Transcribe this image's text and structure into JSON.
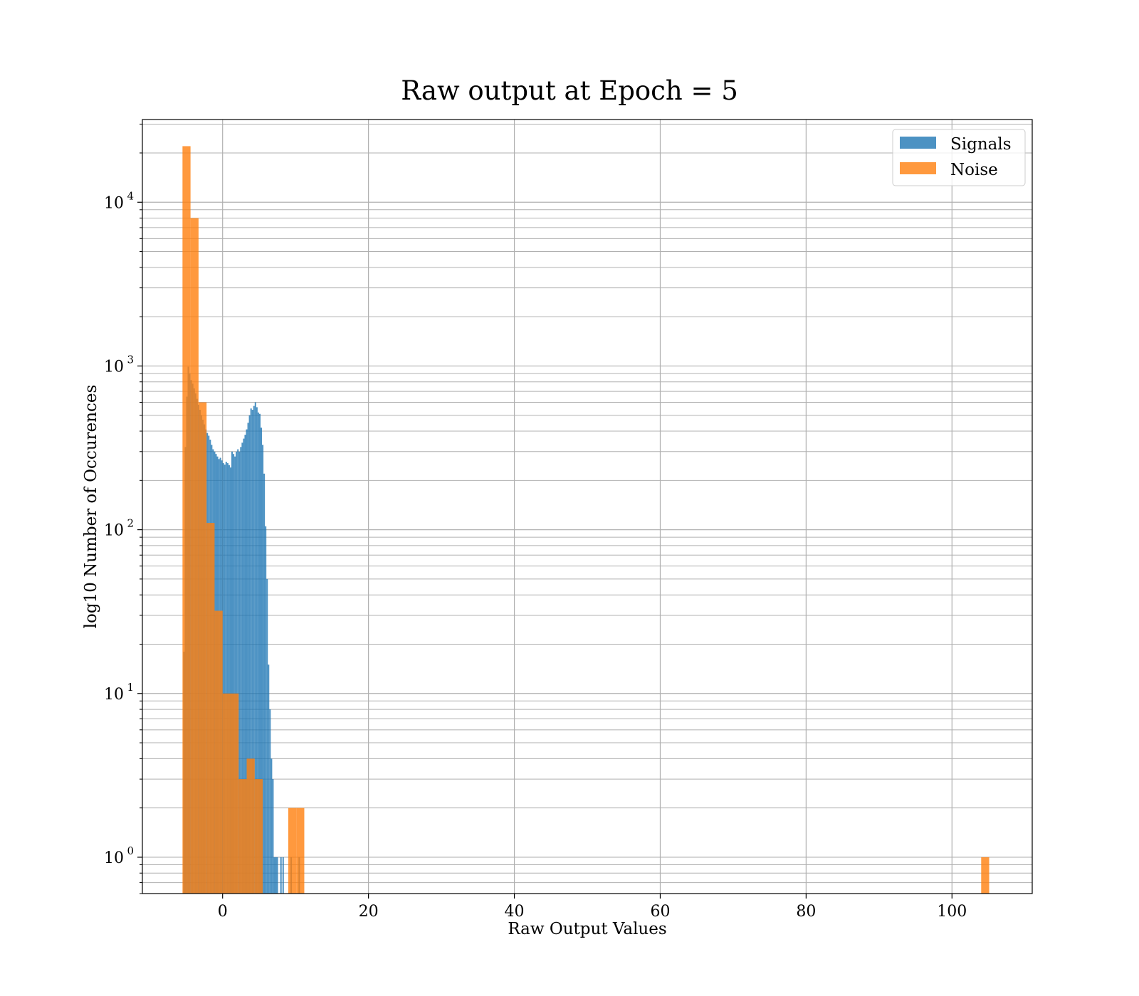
{
  "chart_data": {
    "type": "bar",
    "title": "Raw output at Epoch = 5",
    "xlabel": "Raw Output Values",
    "ylabel": "log10 Number of Occurences",
    "xlim": [
      -11,
      111
    ],
    "ylim": [
      0.6,
      32000
    ],
    "yscale": "log",
    "grid": true,
    "legend_position": "top-right",
    "x_ticks": [
      0,
      20,
      40,
      60,
      80,
      100
    ],
    "y_ticks": [
      {
        "base": "10",
        "exp": "0",
        "value": 1
      },
      {
        "base": "10",
        "exp": "1",
        "value": 10
      },
      {
        "base": "10",
        "exp": "2",
        "value": 100
      },
      {
        "base": "10",
        "exp": "3",
        "value": 1000
      },
      {
        "base": "10",
        "exp": "4",
        "value": 10000
      }
    ],
    "series": [
      {
        "name": "Signals",
        "color": "#1f77b4",
        "opacity": 0.8,
        "bins": [
          [
            -5.4,
            -5.2,
            18
          ],
          [
            -5.2,
            -5.0,
            320
          ],
          [
            -5.0,
            -4.8,
            650
          ],
          [
            -4.8,
            -4.6,
            990
          ],
          [
            -4.6,
            -4.4,
            900
          ],
          [
            -4.4,
            -4.2,
            820
          ],
          [
            -4.2,
            -4.0,
            780
          ],
          [
            -4.0,
            -3.8,
            730
          ],
          [
            -3.8,
            -3.6,
            680
          ],
          [
            -3.6,
            -3.4,
            630
          ],
          [
            -3.4,
            -3.2,
            580
          ],
          [
            -3.2,
            -3.0,
            540
          ],
          [
            -3.0,
            -2.8,
            500
          ],
          [
            -2.8,
            -2.6,
            470
          ],
          [
            -2.6,
            -2.4,
            440
          ],
          [
            -2.4,
            -2.2,
            410
          ],
          [
            -2.2,
            -2.0,
            390
          ],
          [
            -2.0,
            -1.8,
            375
          ],
          [
            -1.8,
            -1.6,
            355
          ],
          [
            -1.6,
            -1.4,
            330
          ],
          [
            -1.4,
            -1.2,
            310
          ],
          [
            -1.2,
            -1.0,
            300
          ],
          [
            -1.0,
            -0.8,
            290
          ],
          [
            -0.8,
            -0.6,
            280
          ],
          [
            -0.6,
            -0.4,
            270
          ],
          [
            -0.4,
            -0.2,
            275
          ],
          [
            -0.2,
            0.0,
            265
          ],
          [
            0.0,
            0.2,
            255
          ],
          [
            0.2,
            0.4,
            250
          ],
          [
            0.4,
            0.6,
            260
          ],
          [
            0.6,
            0.8,
            255
          ],
          [
            0.8,
            1.0,
            248
          ],
          [
            1.0,
            1.2,
            240
          ],
          [
            1.2,
            1.4,
            300
          ],
          [
            1.4,
            1.6,
            290
          ],
          [
            1.6,
            1.8,
            280
          ],
          [
            1.8,
            2.0,
            300
          ],
          [
            2.0,
            2.2,
            310
          ],
          [
            2.2,
            2.4,
            300
          ],
          [
            2.4,
            2.6,
            320
          ],
          [
            2.6,
            2.8,
            340
          ],
          [
            2.8,
            3.0,
            360
          ],
          [
            3.0,
            3.2,
            380
          ],
          [
            3.2,
            3.4,
            410
          ],
          [
            3.4,
            3.6,
            450
          ],
          [
            3.6,
            3.8,
            500
          ],
          [
            3.8,
            4.0,
            550
          ],
          [
            4.0,
            4.2,
            540
          ],
          [
            4.2,
            4.4,
            570
          ],
          [
            4.4,
            4.6,
            600
          ],
          [
            4.6,
            4.8,
            560
          ],
          [
            4.8,
            5.0,
            520
          ],
          [
            5.0,
            5.2,
            510
          ],
          [
            5.2,
            5.4,
            420
          ],
          [
            5.4,
            5.6,
            330
          ],
          [
            5.6,
            5.8,
            220
          ],
          [
            5.8,
            6.0,
            105
          ],
          [
            6.0,
            6.2,
            50
          ],
          [
            6.2,
            6.4,
            15
          ],
          [
            6.4,
            6.6,
            8
          ],
          [
            6.6,
            6.8,
            4
          ],
          [
            6.8,
            7.0,
            3
          ],
          [
            7.0,
            7.2,
            1
          ],
          [
            7.2,
            7.4,
            1
          ],
          [
            7.4,
            7.6,
            1
          ],
          [
            7.9,
            8.1,
            1
          ],
          [
            8.2,
            8.4,
            1
          ],
          [
            9.3,
            9.5,
            1
          ],
          [
            10.4,
            10.6,
            1
          ]
        ]
      },
      {
        "name": "Noise",
        "color": "#ff7f0e",
        "opacity": 0.8,
        "bins": [
          [
            -5.5,
            -4.4,
            22000
          ],
          [
            -4.4,
            -3.3,
            8000
          ],
          [
            -3.3,
            -2.2,
            600
          ],
          [
            -2.2,
            -1.1,
            110
          ],
          [
            -1.1,
            0.0,
            32
          ],
          [
            0.0,
            1.1,
            10
          ],
          [
            1.1,
            2.2,
            10
          ],
          [
            2.2,
            3.3,
            3
          ],
          [
            3.3,
            4.4,
            4
          ],
          [
            4.4,
            5.5,
            3
          ],
          [
            9.0,
            10.1,
            2
          ],
          [
            10.1,
            11.2,
            2
          ],
          [
            104.0,
            105.1,
            1
          ]
        ]
      }
    ]
  }
}
